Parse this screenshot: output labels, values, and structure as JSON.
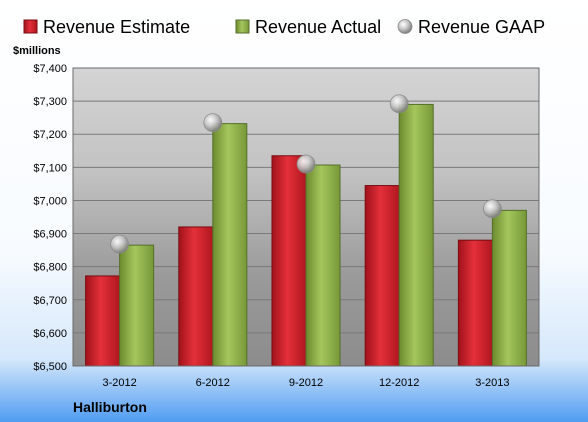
{
  "chart_data": {
    "type": "bar",
    "title": "",
    "company": "Halliburton",
    "ylabel": "$millions",
    "xlabel": "",
    "categories": [
      "3-2012",
      "6-2012",
      "9-2012",
      "12-2012",
      "3-2013"
    ],
    "ylim": [
      6500,
      7400
    ],
    "yticks": [
      6500,
      6600,
      6700,
      6800,
      6900,
      7000,
      7100,
      7200,
      7300,
      7400
    ],
    "ytick_labels": [
      "$6,500",
      "$6,600",
      "$6,700",
      "$6,800",
      "$6,900",
      "$7,000",
      "$7,100",
      "$7,200",
      "$7,300",
      "$7,400"
    ],
    "grid": true,
    "legend_position": "top",
    "series": [
      {
        "name": "Revenue Estimate",
        "kind": "bar",
        "color": "#d0202a",
        "values": [
          6772,
          6920,
          7135,
          7045,
          6880
        ]
      },
      {
        "name": "Revenue Actual",
        "kind": "bar",
        "color": "#8fb24a",
        "values": [
          6865,
          7232,
          7107,
          7290,
          6970
        ]
      },
      {
        "name": "Revenue GAAP",
        "kind": "marker",
        "color": "#b8b8b8",
        "values": [
          6868,
          7235,
          7110,
          7292,
          6975
        ]
      }
    ]
  }
}
